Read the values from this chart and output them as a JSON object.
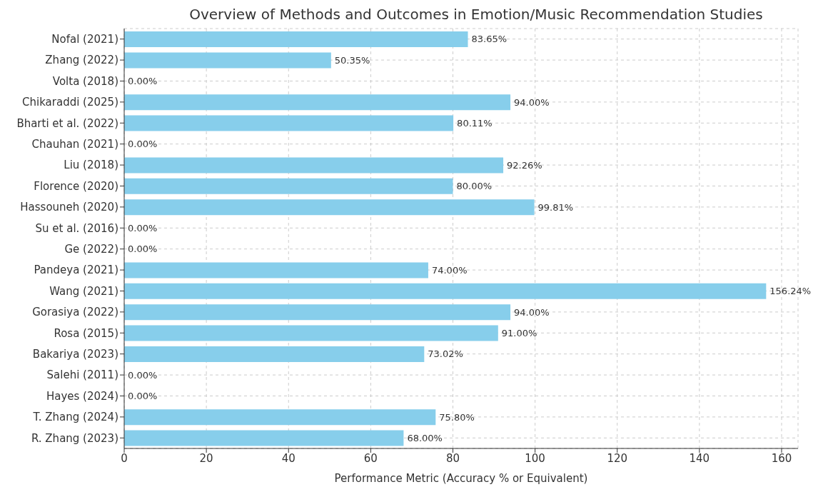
{
  "chart_data": {
    "type": "bar",
    "orientation": "horizontal",
    "title": "Overview of Methods and Outcomes in Emotion/Music Recommendation Studies",
    "xlabel": "Performance Metric (Accuracy % or Equivalent)",
    "categories": [
      "Nofal (2021)",
      "Zhang (2022)",
      "Volta (2018)",
      "Chikaraddi (2025)",
      "Bharti et al. (2022)",
      "Chauhan (2021)",
      "Liu (2018)",
      "Florence (2020)",
      "Hassouneh (2020)",
      "Su et al. (2016)",
      "Ge (2022)",
      "Pandeya (2021)",
      "Wang (2021)",
      "Gorasiya (2022)",
      "Rosa (2015)",
      "Bakariya (2023)",
      "Salehi (2011)",
      "Hayes (2024)",
      "T. Zhang (2024)",
      "R. Zhang (2023)"
    ],
    "values": [
      83.65,
      50.35,
      0,
      94,
      80.11,
      0,
      92.26,
      80,
      99.81,
      0,
      0,
      74,
      156.24,
      94,
      91,
      73.02,
      0,
      0,
      75.8,
      68
    ],
    "value_labels": [
      "83.65%",
      "50.35%",
      "0.00%",
      "94.00%",
      "80.11%",
      "0.00%",
      "92.26%",
      "80.00%",
      "99.81%",
      "0.00%",
      "0.00%",
      "74.00%",
      "156.24%",
      "94.00%",
      "91.00%",
      "73.02%",
      "0.00%",
      "0.00%",
      "75.80%",
      "68.00%"
    ],
    "color": "#87ceeb",
    "xlim": [
      0,
      164
    ],
    "xticks": [
      0,
      20,
      40,
      60,
      80,
      100,
      120,
      140,
      160
    ],
    "grid": true
  }
}
